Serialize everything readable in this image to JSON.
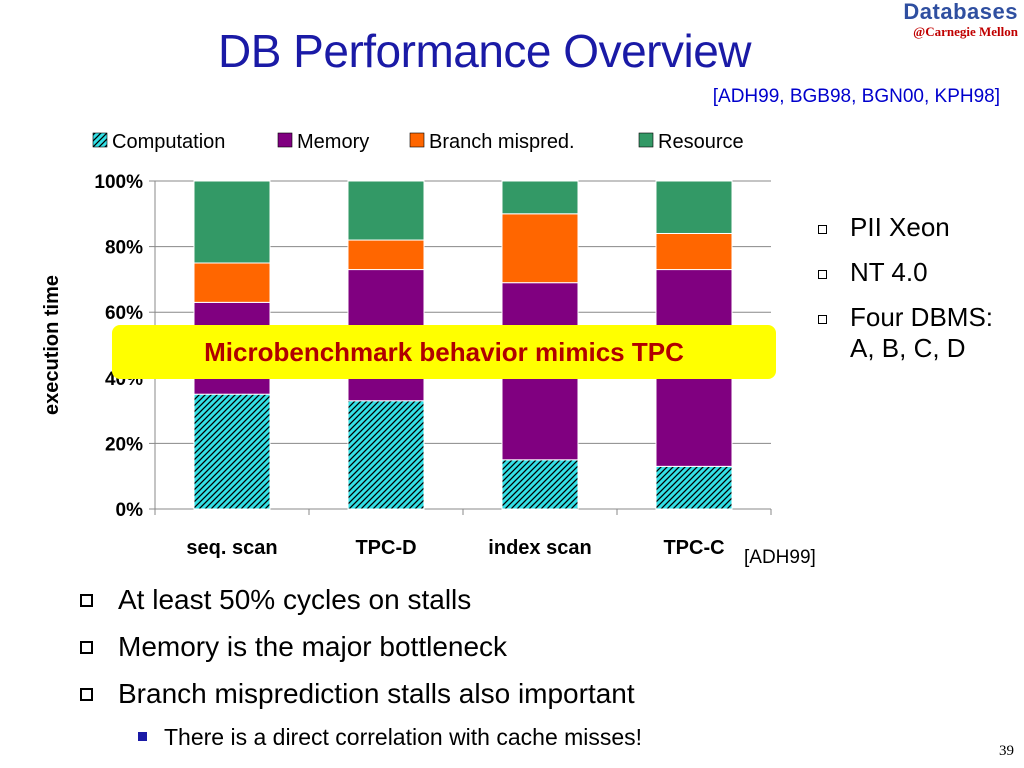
{
  "brand": {
    "name": "Databases",
    "affiliation": "@Carnegie Mellon"
  },
  "slide": {
    "title": "DB Performance Overview",
    "references": "[ADH99, BGB98, BGN00, KPH98]",
    "callout": "Microbenchmark behavior mimics TPC",
    "right_bullets": [
      "PII Xeon",
      "NT 4.0",
      "Four DBMS: A, B, C, D"
    ],
    "chart_source": "[ADH99]",
    "bullets": [
      "At least 50% cycles on stalls",
      "Memory is the major bottleneck",
      "Branch misprediction stalls also important"
    ],
    "sub_bullet": "There is a direct correlation with cache misses!",
    "page_number": "39"
  },
  "colors": {
    "title": "#1a1aa6",
    "callout_bg": "#ffff00",
    "callout_text": "#b00000",
    "computation": "#33e0e6",
    "memory": "#800080",
    "branch": "#ff6600",
    "resource": "#339966"
  },
  "chart_data": {
    "type": "bar",
    "stacked": true,
    "categories": [
      "seq. scan",
      "TPC-D",
      "index scan",
      "TPC-C"
    ],
    "series": [
      {
        "name": "Computation",
        "values": [
          35,
          33,
          15,
          13
        ]
      },
      {
        "name": "Memory",
        "values": [
          28,
          40,
          54,
          60
        ]
      },
      {
        "name": "Branch mispred.",
        "values": [
          12,
          9,
          21,
          11
        ]
      },
      {
        "name": "Resource",
        "values": [
          25,
          18,
          10,
          16
        ]
      }
    ],
    "ylabel": "execution time",
    "xlabel": "",
    "ylim": [
      0,
      100
    ],
    "yticks": [
      "0%",
      "20%",
      "40%",
      "60%",
      "80%",
      "100%"
    ],
    "grid": true,
    "legend": "top"
  }
}
